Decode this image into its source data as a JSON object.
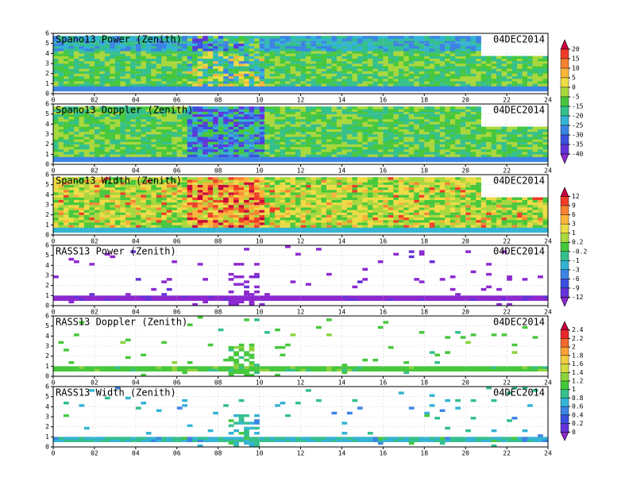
{
  "chart_data": [
    {
      "type": "heatmap",
      "title": "Spano13 Power (Zenith)",
      "date": "04DEC2014",
      "xlim": [
        0,
        24
      ],
      "ylim": [
        0,
        6
      ],
      "xticks": [
        0,
        {
          "value": 2,
          "label": "02"
        },
        {
          "value": 4,
          "label": "04"
        },
        {
          "value": 6,
          "label": "06"
        },
        {
          "value": 8,
          "label": "08"
        },
        10,
        12,
        14,
        16,
        18,
        20,
        22,
        24
      ],
      "yticks": [
        0,
        1,
        2,
        3,
        4,
        5,
        6
      ],
      "grid": true
    },
    {
      "type": "heatmap",
      "title": "Spano13 Doppler (Zenith)",
      "date": "04DEC2014",
      "xlim": [
        0,
        24
      ],
      "ylim": [
        0,
        6
      ],
      "xticks": [
        0,
        {
          "value": 2,
          "label": "02"
        },
        {
          "value": 4,
          "label": "04"
        },
        {
          "value": 6,
          "label": "06"
        },
        {
          "value": 8,
          "label": "08"
        },
        10,
        12,
        14,
        16,
        18,
        20,
        22,
        24
      ],
      "yticks": [
        0,
        1,
        2,
        3,
        4,
        5,
        6
      ],
      "grid": true
    },
    {
      "type": "heatmap",
      "title": "Spano13 Width (Zenith)",
      "date": "04DEC2014",
      "xlim": [
        0,
        24
      ],
      "ylim": [
        0,
        6
      ],
      "xticks": [
        0,
        {
          "value": 2,
          "label": "02"
        },
        {
          "value": 4,
          "label": "04"
        },
        {
          "value": 6,
          "label": "06"
        },
        {
          "value": 8,
          "label": "08"
        },
        10,
        12,
        14,
        16,
        18,
        20,
        22,
        24
      ],
      "yticks": [
        0,
        1,
        2,
        3,
        4,
        5,
        6
      ],
      "grid": true
    },
    {
      "type": "heatmap",
      "title": "RASS13 Power (Zenith)",
      "date": "04DEC2014",
      "xlim": [
        0,
        24
      ],
      "ylim": [
        0,
        6
      ],
      "xticks": [
        0,
        {
          "value": 2,
          "label": "02"
        },
        {
          "value": 4,
          "label": "04"
        },
        {
          "value": 6,
          "label": "06"
        },
        {
          "value": 8,
          "label": "08"
        },
        10,
        12,
        14,
        16,
        18,
        20,
        22,
        24
      ],
      "yticks": [
        0,
        1,
        2,
        3,
        4,
        5,
        6
      ],
      "grid": true
    },
    {
      "type": "heatmap",
      "title": "RASS13 Doppler (Zenith)",
      "date": "04DEC2014",
      "xlim": [
        0,
        24
      ],
      "ylim": [
        0,
        6
      ],
      "xticks": [
        0,
        {
          "value": 2,
          "label": "02"
        },
        {
          "value": 4,
          "label": "04"
        },
        {
          "value": 6,
          "label": "06"
        },
        {
          "value": 8,
          "label": "08"
        },
        10,
        12,
        14,
        16,
        18,
        20,
        22,
        24
      ],
      "yticks": [
        0,
        1,
        2,
        3,
        4,
        5,
        6
      ],
      "grid": true
    },
    {
      "type": "heatmap",
      "title": "RASS13 Width (Zenith)",
      "date": "04DEC2014",
      "xlim": [
        0,
        24
      ],
      "ylim": [
        0,
        6
      ],
      "xticks": [
        0,
        {
          "value": 2,
          "label": "02"
        },
        {
          "value": 4,
          "label": "04"
        },
        {
          "value": 6,
          "label": "06"
        },
        {
          "value": 8,
          "label": "08"
        },
        10,
        12,
        14,
        16,
        18,
        20,
        22,
        24
      ],
      "yticks": [
        0,
        1,
        2,
        3,
        4,
        5,
        6
      ],
      "grid": true
    }
  ],
  "colorbars": [
    {
      "ticks": [
        20,
        15,
        10,
        5,
        0,
        -5,
        -15,
        -20,
        -25,
        -30,
        -35,
        -40
      ],
      "colors": [
        "#c8003c",
        "#f03c28",
        "#f78232",
        "#fbb43a",
        "#eedc46",
        "#a8d83c",
        "#46c83c",
        "#34c08c",
        "#34b4d4",
        "#3c84e4",
        "#3c50e0",
        "#6432d8",
        "#8c28d0"
      ]
    },
    {
      "ticks": [
        12,
        9,
        6,
        3,
        1,
        0.2,
        -0.2,
        -1,
        -3,
        -6,
        -9,
        -12
      ],
      "colors": [
        "#c8003c",
        "#f03c28",
        "#f78232",
        "#fbb43a",
        "#eedc46",
        "#a8d83c",
        "#46c83c",
        "#34c08c",
        "#34b4d4",
        "#3c84e4",
        "#3c50e0",
        "#6432d8",
        "#8c28d0"
      ]
    },
    {
      "ticks": [
        2.4,
        2.2,
        2,
        1.8,
        1.6,
        1.4,
        1.2,
        1,
        0.8,
        0.6,
        0.4,
        0.2,
        0
      ],
      "colors": [
        "#c8003c",
        "#e8282c",
        "#f66a2e",
        "#faa036",
        "#f4cc40",
        "#d4dc44",
        "#8cd43c",
        "#46c83c",
        "#34c08c",
        "#34b4d4",
        "#3c84e4",
        "#3c50e0",
        "#6432d8",
        "#8c28d0"
      ]
    }
  ]
}
